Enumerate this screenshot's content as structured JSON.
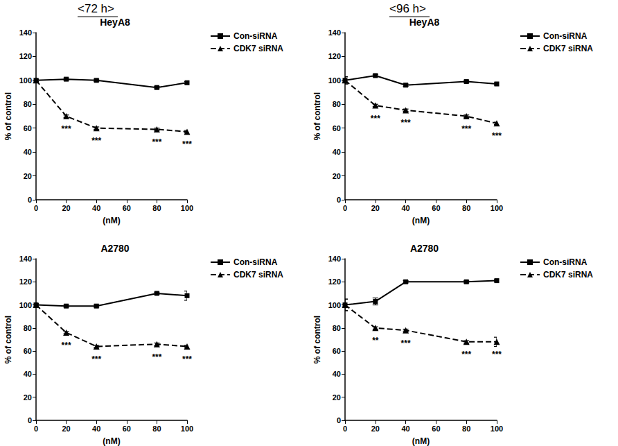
{
  "column_titles": [
    "<72 h>",
    "<96 h>"
  ],
  "chart_data": [
    {
      "type": "line",
      "title": "HeyA8",
      "xlabel": "(nM)",
      "ylabel": "% of control",
      "x": [
        0,
        20,
        40,
        80,
        100
      ],
      "xlim": [
        0,
        100
      ],
      "xticks": [
        0,
        20,
        40,
        60,
        80,
        100
      ],
      "ylim": [
        0,
        140
      ],
      "yticks": [
        0,
        20,
        40,
        60,
        80,
        100,
        120,
        140
      ],
      "grid": false,
      "legend": "right",
      "series": [
        {
          "name": "Con-siRNA",
          "color": "#000000",
          "marker": "square",
          "line_style": "solid",
          "values": [
            100,
            101,
            100,
            94,
            98
          ],
          "errors": [
            1,
            1,
            1,
            1,
            1
          ]
        },
        {
          "name": "CDK7 siRNA",
          "color": "#000000",
          "marker": "triangle",
          "line_style": "dashed",
          "values": [
            100,
            70,
            60,
            59,
            57
          ],
          "errors": [
            1,
            1,
            1,
            1,
            1
          ],
          "significance": [
            null,
            "***",
            "***",
            "***",
            "***"
          ]
        }
      ]
    },
    {
      "type": "line",
      "title": "HeyA8",
      "xlabel": "(nM)",
      "ylabel": "% of control",
      "x": [
        0,
        20,
        40,
        80,
        100
      ],
      "xlim": [
        0,
        100
      ],
      "xticks": [
        0,
        20,
        40,
        60,
        80,
        100
      ],
      "ylim": [
        0,
        140
      ],
      "yticks": [
        0,
        20,
        40,
        60,
        80,
        100,
        120,
        140
      ],
      "grid": false,
      "legend": "right",
      "series": [
        {
          "name": "Con-siRNA",
          "color": "#000000",
          "marker": "square",
          "line_style": "solid",
          "values": [
            100,
            104,
            96,
            99,
            97
          ],
          "errors": [
            3,
            1,
            1,
            1,
            1
          ]
        },
        {
          "name": "CDK7 siRNA",
          "color": "#000000",
          "marker": "triangle",
          "line_style": "dashed",
          "values": [
            100,
            79,
            75,
            70,
            64
          ],
          "errors": [
            3,
            1,
            1,
            1,
            1
          ],
          "significance": [
            null,
            "***",
            "***",
            "***",
            "***"
          ]
        }
      ]
    },
    {
      "type": "line",
      "title": "A2780",
      "xlabel": "(nM)",
      "ylabel": "% of control",
      "x": [
        0,
        20,
        40,
        80,
        100
      ],
      "xlim": [
        0,
        100
      ],
      "xticks": [
        0,
        20,
        40,
        60,
        80,
        100
      ],
      "ylim": [
        0,
        140
      ],
      "yticks": [
        0,
        20,
        40,
        60,
        80,
        100,
        120,
        140
      ],
      "grid": false,
      "legend": "right",
      "series": [
        {
          "name": "Con-siRNA",
          "color": "#000000",
          "marker": "square",
          "line_style": "solid",
          "values": [
            100,
            99,
            99,
            110,
            108
          ],
          "errors": [
            1,
            1,
            1,
            1,
            4
          ]
        },
        {
          "name": "CDK7 siRNA",
          "color": "#000000",
          "marker": "triangle",
          "line_style": "dashed",
          "values": [
            100,
            76,
            64,
            66,
            64
          ],
          "errors": [
            1,
            1,
            1,
            1,
            1
          ],
          "significance": [
            null,
            "***",
            "***",
            "***",
            "***"
          ]
        }
      ]
    },
    {
      "type": "line",
      "title": "A2780",
      "xlabel": "(nM)",
      "ylabel": "% of control",
      "x": [
        0,
        20,
        40,
        80,
        100
      ],
      "xlim": [
        0,
        100
      ],
      "xticks": [
        0,
        20,
        40,
        60,
        80,
        100
      ],
      "ylim": [
        0,
        140
      ],
      "yticks": [
        0,
        20,
        40,
        60,
        80,
        100,
        120,
        140
      ],
      "grid": false,
      "legend": "right",
      "series": [
        {
          "name": "Con-siRNA",
          "color": "#000000",
          "marker": "square",
          "line_style": "solid",
          "values": [
            100,
            103,
            120,
            120,
            121
          ],
          "errors": [
            5,
            3,
            1,
            1,
            1
          ]
        },
        {
          "name": "CDK7 siRNA",
          "color": "#000000",
          "marker": "triangle",
          "line_style": "dashed",
          "values": [
            100,
            80,
            78,
            68,
            68
          ],
          "errors": [
            5,
            1,
            1,
            1,
            4
          ],
          "significance": [
            null,
            "**",
            "***",
            "***",
            "***"
          ]
        }
      ]
    }
  ]
}
